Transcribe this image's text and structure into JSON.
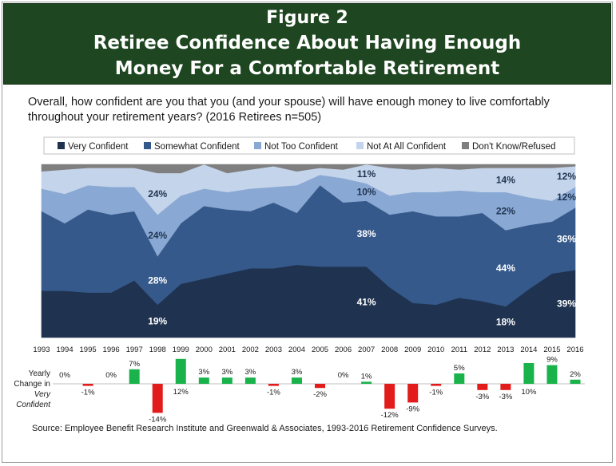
{
  "figure_label": "Figure 2",
  "title_line1": "Retiree Confidence About Having Enough",
  "title_line2": "Money For a Comfortable Retirement",
  "question": "Overall, how confident are you that you (and your spouse) will have enough money to live comfortably throughout your retirement years? (2016 Retirees n=505)",
  "source": "Source:  Employee Benefit Research Institute and Greenwald & Associates, 1993-2016 Retirement Confidence Surveys.",
  "colors": {
    "very_confident": "#1f3350",
    "somewhat_confident": "#35598a",
    "not_too_confident": "#89a8d3",
    "not_at_all_confident": "#c4d4ea",
    "dont_know": "#7f7f7f",
    "positive_change": "#19b24b",
    "negative_change": "#e21b1b",
    "banner": "#1e4620"
  },
  "change_axis_label": {
    "line1": "Yearly",
    "line2": "Change in",
    "line3": "Very",
    "line4": "Confident"
  },
  "chart_data": [
    {
      "type": "area",
      "stacked": true,
      "x": [
        "1993",
        "1994",
        "1995",
        "1996",
        "1997",
        "1998",
        "1999",
        "2000",
        "2001",
        "2002",
        "2003",
        "2004",
        "2005",
        "2006",
        "2007",
        "2008",
        "2009",
        "2010",
        "2011",
        "2012",
        "2013",
        "2014",
        "2015",
        "2016"
      ],
      "ylim": [
        0,
        100
      ],
      "legend_position": "top",
      "series": [
        {
          "name": "Very Confident",
          "color": "#1f3350",
          "values": [
            27,
            27,
            26,
            26,
            33,
            19,
            31,
            34,
            37,
            40,
            40,
            42,
            41,
            41,
            41,
            29,
            20,
            19,
            23,
            21,
            18,
            28,
            37,
            39
          ]
        },
        {
          "name": "Somewhat Confident",
          "color": "#35598a",
          "values": [
            46,
            39,
            48,
            45,
            40,
            28,
            35,
            42,
            37,
            33,
            38,
            30,
            47,
            37,
            38,
            42,
            53,
            51,
            47,
            51,
            44,
            37,
            30,
            36
          ]
        },
        {
          "name": "Not Too Confident",
          "color": "#89a8d3",
          "values": [
            13,
            17,
            14,
            16,
            14,
            24,
            16,
            10,
            10,
            13,
            9,
            16,
            6,
            14,
            10,
            11,
            11,
            14,
            15,
            12,
            22,
            16,
            12,
            12
          ]
        },
        {
          "name": "Not At All Confident",
          "color": "#c4d4ea",
          "values": [
            10,
            14,
            10,
            11,
            11,
            24,
            13,
            14,
            11,
            11,
            12,
            8,
            4,
            5,
            11,
            16,
            13,
            14,
            12,
            14,
            14,
            17,
            19,
            12
          ]
        },
        {
          "name": "Don't Know/Refused",
          "color": "#7f7f7f",
          "values": [
            4,
            3,
            2,
            2,
            2,
            5,
            5,
            0,
            5,
            3,
            1,
            4,
            2,
            3,
            0,
            2,
            3,
            2,
            3,
            2,
            2,
            2,
            2,
            1
          ]
        }
      ],
      "labels": [
        {
          "year": "1998",
          "series": "Very Confident",
          "text": "19%"
        },
        {
          "year": "1998",
          "series": "Somewhat Confident",
          "text": "28%"
        },
        {
          "year": "1998",
          "series": "Not Too Confident",
          "text": "24%"
        },
        {
          "year": "1998",
          "series": "Not At All Confident",
          "text": "24%"
        },
        {
          "year": "2007",
          "series": "Very Confident",
          "text": "41%"
        },
        {
          "year": "2007",
          "series": "Somewhat Confident",
          "text": "38%"
        },
        {
          "year": "2007",
          "series": "Not Too Confident",
          "text": "10%"
        },
        {
          "year": "2007",
          "series": "Not At All Confident",
          "text": "11%"
        },
        {
          "year": "2013",
          "series": "Very Confident",
          "text": "18%"
        },
        {
          "year": "2013",
          "series": "Somewhat Confident",
          "text": "44%"
        },
        {
          "year": "2013",
          "series": "Not Too Confident",
          "text": "22%"
        },
        {
          "year": "2013",
          "series": "Not At All Confident",
          "text": "14%"
        },
        {
          "year": "2016",
          "series": "Very Confident",
          "text": "39%"
        },
        {
          "year": "2016",
          "series": "Somewhat Confident",
          "text": "36%"
        },
        {
          "year": "2016",
          "series": "Not Too Confident",
          "text": "12%"
        },
        {
          "year": "2016",
          "series": "Not At All Confident",
          "text": "12%"
        }
      ]
    },
    {
      "type": "bar",
      "categories": [
        "1993",
        "1994",
        "1995",
        "1996",
        "1997",
        "1998",
        "1999",
        "2000",
        "2001",
        "2002",
        "2003",
        "2004",
        "2005",
        "2006",
        "2007",
        "2008",
        "2009",
        "2010",
        "2011",
        "2012",
        "2013",
        "2014",
        "2015",
        "2016"
      ],
      "values": [
        null,
        0,
        -1,
        0,
        7,
        -14,
        12,
        3,
        3,
        3,
        -1,
        3,
        -2,
        0,
        1,
        -12,
        -9,
        -1,
        5,
        -3,
        -3,
        10,
        9,
        2
      ],
      "value_labels": [
        "",
        "0%",
        "-1%",
        "0%",
        "7%",
        "-14%",
        "12%",
        "3%",
        "3%",
        "3%",
        "-1%",
        "3%",
        "-2%",
        "0%",
        "1%",
        "-12%",
        "-9%",
        "-1%",
        "5%",
        "-3%",
        "-3%",
        "10%",
        "9%",
        "2%"
      ]
    }
  ]
}
